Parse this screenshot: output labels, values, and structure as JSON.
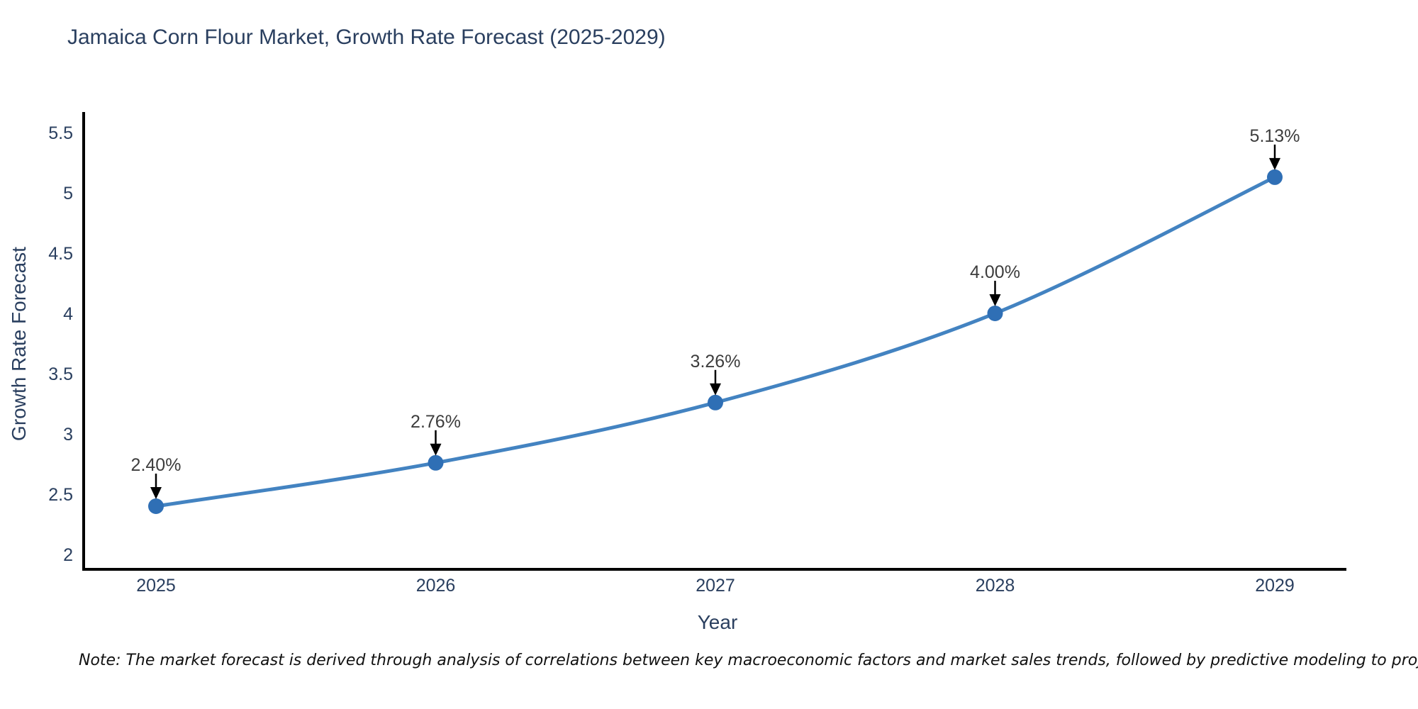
{
  "title": "Jamaica Corn Flour Market, Growth Rate Forecast (2025-2029)",
  "note": "Note: The market forecast is derived through analysis of correlations between key macroeconomic factors and market sales trends, followed by predictive modeling to project future sales",
  "chart_data": {
    "type": "line",
    "title": "Jamaica Corn Flour Market, Growth Rate Forecast (2025-2029)",
    "xlabel": "Year",
    "ylabel": "Growth Rate Forecast",
    "x": [
      2025,
      2026,
      2027,
      2028,
      2029
    ],
    "values": [
      2.4,
      2.76,
      3.26,
      4.0,
      5.13
    ],
    "point_labels": [
      "2.40%",
      "2.76%",
      "3.26%",
      "4.00%",
      "5.13%"
    ],
    "xticks": [
      "2025",
      "2026",
      "2027",
      "2028",
      "2029"
    ],
    "yticks": [
      2,
      2.5,
      3,
      3.5,
      4,
      4.5,
      5,
      5.5
    ],
    "ylim": [
      1.86,
      5.67
    ],
    "xlim": [
      2024.74,
      2029.26
    ],
    "grid": false,
    "legend": null,
    "line_color": "#4383c1",
    "marker_color": "#2f6fb5",
    "axis_color": "#000000",
    "tick_color": "#2a3f5f",
    "annotation_color": "#3d3d3d"
  }
}
